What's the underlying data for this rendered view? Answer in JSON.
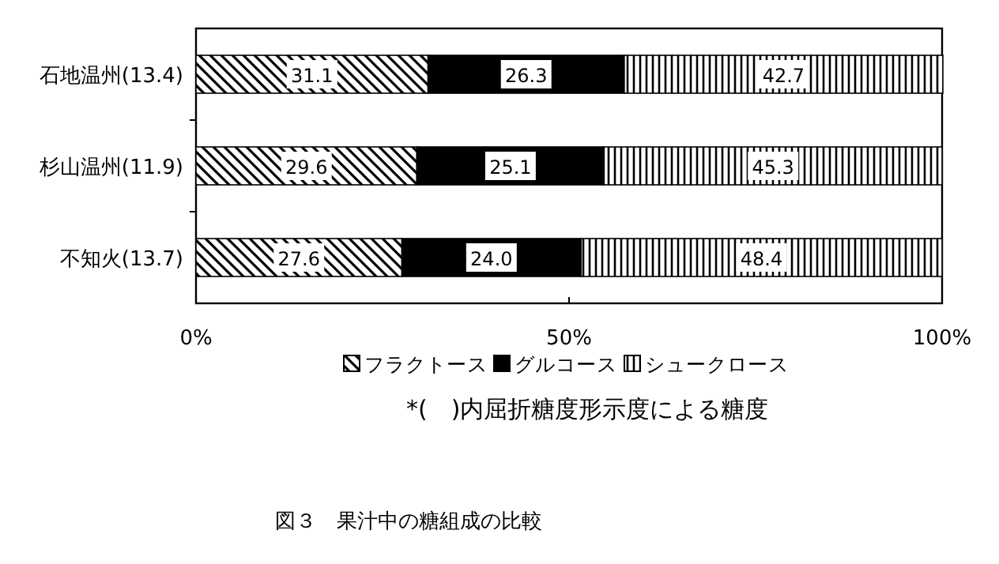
{
  "chart_data": {
    "type": "bar",
    "orientation": "horizontal",
    "stacked": true,
    "title": "図３　果汁中の糖組成の比較",
    "categories": [
      "石地温州(13.4)",
      "杉山温州(11.9)",
      "不知火(13.7)"
    ],
    "series": [
      {
        "name": "フラクトース",
        "color": "#000000",
        "values": [
          31.1,
          29.6,
          27.6
        ],
        "value_labels": [
          "31.1",
          "29.6",
          "27.6"
        ]
      },
      {
        "name": "グルコース",
        "color": "#000000",
        "values": [
          26.3,
          25.1,
          24.0
        ],
        "value_labels": [
          "26.3",
          "25.1",
          "24.0"
        ]
      },
      {
        "name": "シュークロース",
        "color": "#000000",
        "values": [
          42.7,
          45.3,
          48.4
        ],
        "value_labels": [
          "42.7",
          "45.3",
          "48.4"
        ]
      }
    ],
    "xlim": [
      0,
      100
    ],
    "xticks": [
      {
        "value": 0,
        "label": "0%"
      },
      {
        "value": 50,
        "label": "50%"
      },
      {
        "value": 100,
        "label": "100%"
      }
    ],
    "legend": "bottom",
    "annotations": [
      "*(　)内屈折糖度形示度による糖度"
    ]
  }
}
